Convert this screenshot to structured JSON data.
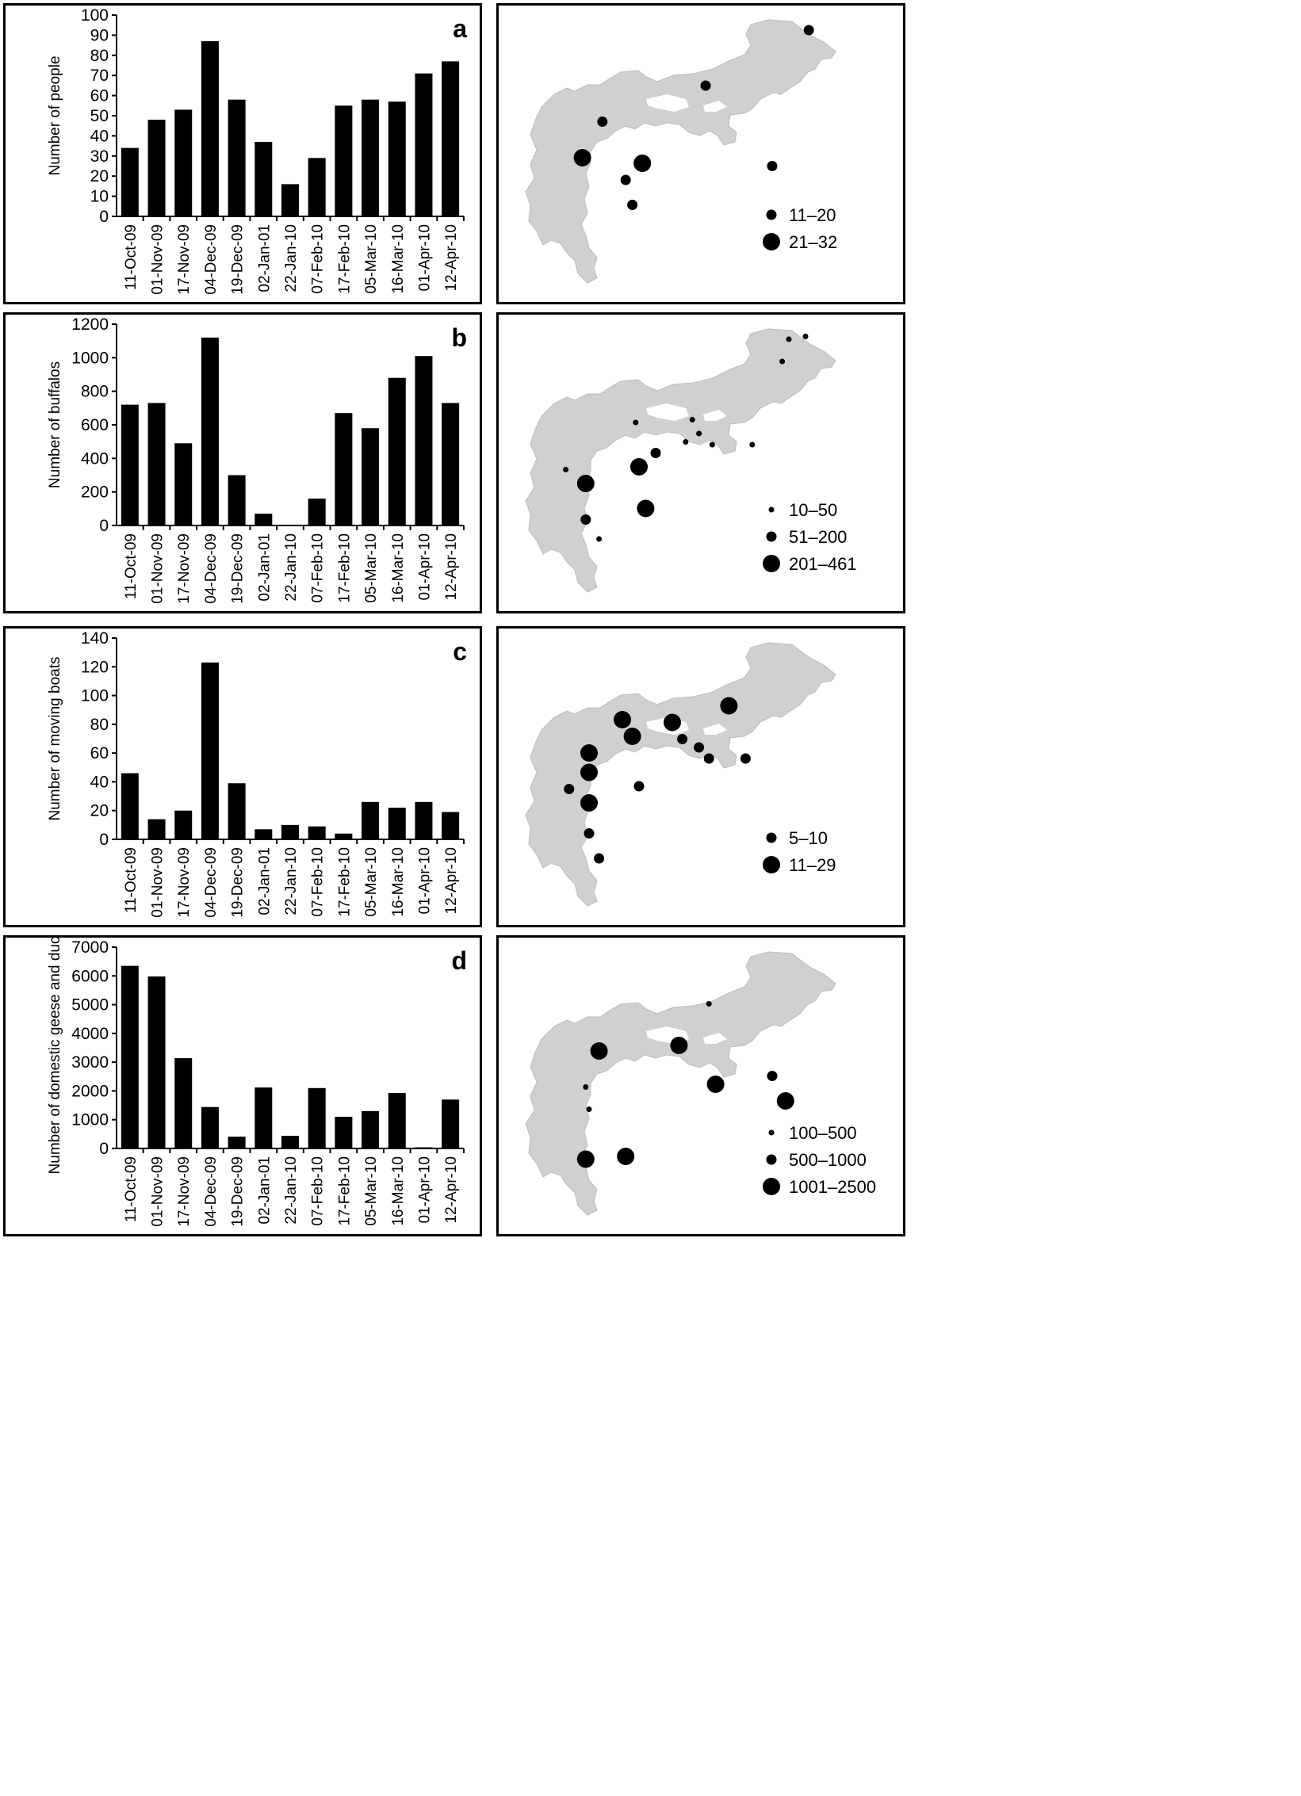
{
  "categories": [
    "11-Oct-09",
    "01-Nov-09",
    "17-Nov-09",
    "04-Dec-09",
    "19-Dec-09",
    "02-Jan-01",
    "22-Jan-10",
    "07-Feb-10",
    "17-Feb-10",
    "05-Mar-10",
    "16-Mar-10",
    "01-Apr-10",
    "12-Apr-10"
  ],
  "colors": {
    "bar": "#000000",
    "map_fill": "#d0d0d0",
    "frame": "#000000"
  },
  "chart_data": [
    {
      "panel": "a",
      "type": "bar",
      "ylabel": "Number of people",
      "ylim": [
        0,
        100
      ],
      "yticks": [
        0,
        10,
        20,
        30,
        40,
        50,
        60,
        70,
        80,
        90,
        100
      ],
      "values": [
        34,
        48,
        53,
        87,
        58,
        37,
        16,
        29,
        55,
        58,
        57,
        71,
        77
      ]
    },
    {
      "panel": "b",
      "type": "bar",
      "ylabel": "Number of buffalos",
      "ylim": [
        0,
        1200
      ],
      "yticks": [
        0,
        200,
        400,
        600,
        800,
        1000,
        1200
      ],
      "values": [
        720,
        730,
        490,
        1120,
        300,
        70,
        0,
        160,
        670,
        580,
        880,
        1010,
        730
      ]
    },
    {
      "panel": "c",
      "type": "bar",
      "ylabel": "Number of moving boats",
      "ylim": [
        0,
        140
      ],
      "yticks": [
        0,
        20,
        40,
        60,
        80,
        100,
        120,
        140
      ],
      "values": [
        46,
        14,
        20,
        123,
        39,
        7,
        10,
        9,
        4,
        26,
        22,
        26,
        19
      ]
    },
    {
      "panel": "d",
      "type": "bar",
      "ylabel": "Number of domestic geese and ducks",
      "ylim": [
        0,
        7000
      ],
      "yticks": [
        0,
        1000,
        2000,
        3000,
        4000,
        5000,
        6000,
        7000
      ],
      "values": [
        6350,
        5980,
        3140,
        1440,
        410,
        2120,
        440,
        2100,
        1100,
        1300,
        1930,
        40,
        1700
      ]
    }
  ],
  "maps": [
    {
      "legend": [
        {
          "label": "11–20",
          "size": "medium"
        },
        {
          "label": "21–32",
          "size": "large"
        }
      ],
      "points": [
        {
          "pos": [
            0.86,
            0.06
          ],
          "size": "medium"
        },
        {
          "pos": [
            0.55,
            0.26
          ],
          "size": "medium"
        },
        {
          "pos": [
            0.24,
            0.39
          ],
          "size": "medium"
        },
        {
          "pos": [
            0.18,
            0.52
          ],
          "size": "large"
        },
        {
          "pos": [
            0.36,
            0.54
          ],
          "size": "large"
        },
        {
          "pos": [
            0.31,
            0.6
          ],
          "size": "medium"
        },
        {
          "pos": [
            0.33,
            0.69
          ],
          "size": "medium"
        },
        {
          "pos": [
            0.75,
            0.55
          ],
          "size": "medium"
        }
      ]
    },
    {
      "legend": [
        {
          "label": "10–50",
          "size": "small"
        },
        {
          "label": "51–200",
          "size": "medium"
        },
        {
          "label": "201–461",
          "size": "large"
        }
      ],
      "points": [
        {
          "pos": [
            0.8,
            0.06
          ],
          "size": "small"
        },
        {
          "pos": [
            0.85,
            0.05
          ],
          "size": "small"
        },
        {
          "pos": [
            0.78,
            0.14
          ],
          "size": "small"
        },
        {
          "pos": [
            0.34,
            0.36
          ],
          "size": "small"
        },
        {
          "pos": [
            0.51,
            0.35
          ],
          "size": "small"
        },
        {
          "pos": [
            0.53,
            0.4
          ],
          "size": "small"
        },
        {
          "pos": [
            0.49,
            0.43
          ],
          "size": "small"
        },
        {
          "pos": [
            0.57,
            0.44
          ],
          "size": "small"
        },
        {
          "pos": [
            0.69,
            0.44
          ],
          "size": "small"
        },
        {
          "pos": [
            0.4,
            0.47
          ],
          "size": "medium"
        },
        {
          "pos": [
            0.35,
            0.52
          ],
          "size": "large"
        },
        {
          "pos": [
            0.13,
            0.53
          ],
          "size": "small"
        },
        {
          "pos": [
            0.19,
            0.58
          ],
          "size": "large"
        },
        {
          "pos": [
            0.37,
            0.67
          ],
          "size": "large"
        },
        {
          "pos": [
            0.19,
            0.71
          ],
          "size": "medium"
        },
        {
          "pos": [
            0.23,
            0.78
          ],
          "size": "small"
        }
      ]
    },
    {
      "legend": [
        {
          "label": "5–10",
          "size": "medium"
        },
        {
          "label": "11–29",
          "size": "large"
        }
      ],
      "points": [
        {
          "pos": [
            0.62,
            0.25
          ],
          "size": "large"
        },
        {
          "pos": [
            0.3,
            0.3
          ],
          "size": "large"
        },
        {
          "pos": [
            0.45,
            0.31
          ],
          "size": "large"
        },
        {
          "pos": [
            0.33,
            0.36
          ],
          "size": "large"
        },
        {
          "pos": [
            0.48,
            0.37
          ],
          "size": "medium"
        },
        {
          "pos": [
            0.53,
            0.4
          ],
          "size": "medium"
        },
        {
          "pos": [
            0.56,
            0.44
          ],
          "size": "medium"
        },
        {
          "pos": [
            0.67,
            0.44
          ],
          "size": "medium"
        },
        {
          "pos": [
            0.2,
            0.42
          ],
          "size": "large"
        },
        {
          "pos": [
            0.2,
            0.49
          ],
          "size": "large"
        },
        {
          "pos": [
            0.14,
            0.55
          ],
          "size": "medium"
        },
        {
          "pos": [
            0.35,
            0.54
          ],
          "size": "medium"
        },
        {
          "pos": [
            0.2,
            0.6
          ],
          "size": "large"
        },
        {
          "pos": [
            0.2,
            0.71
          ],
          "size": "medium"
        },
        {
          "pos": [
            0.23,
            0.8
          ],
          "size": "medium"
        }
      ]
    },
    {
      "legend": [
        {
          "label": "100–500",
          "size": "small"
        },
        {
          "label": "500–1000",
          "size": "medium"
        },
        {
          "label": "1001–2500",
          "size": "large"
        }
      ],
      "points": [
        {
          "pos": [
            0.56,
            0.21
          ],
          "size": "small"
        },
        {
          "pos": [
            0.23,
            0.38
          ],
          "size": "large"
        },
        {
          "pos": [
            0.47,
            0.36
          ],
          "size": "large"
        },
        {
          "pos": [
            0.75,
            0.47
          ],
          "size": "medium"
        },
        {
          "pos": [
            0.58,
            0.5
          ],
          "size": "large"
        },
        {
          "pos": [
            0.79,
            0.56
          ],
          "size": "large"
        },
        {
          "pos": [
            0.19,
            0.51
          ],
          "size": "small"
        },
        {
          "pos": [
            0.2,
            0.59
          ],
          "size": "small"
        },
        {
          "pos": [
            0.31,
            0.76
          ],
          "size": "large"
        },
        {
          "pos": [
            0.19,
            0.77
          ],
          "size": "large"
        }
      ]
    }
  ]
}
